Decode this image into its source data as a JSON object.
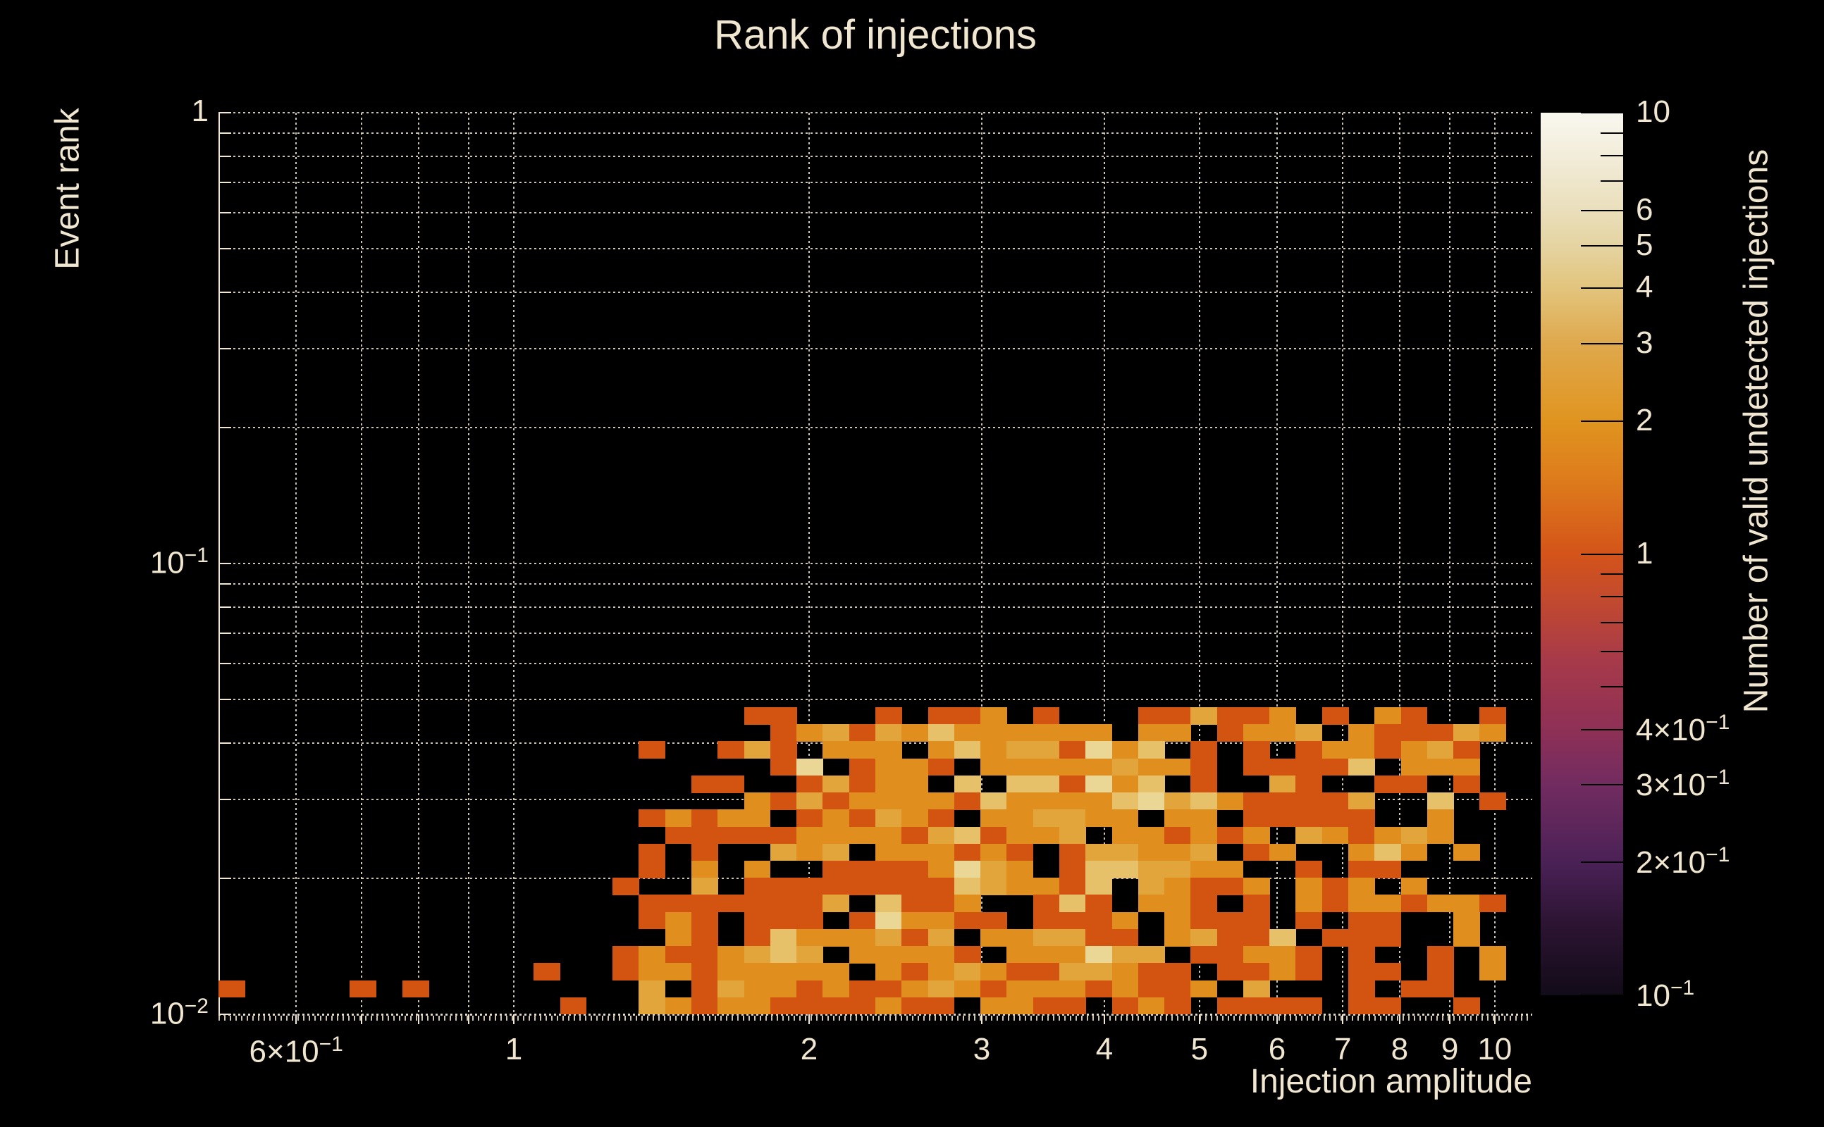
{
  "title": "Rank of injections",
  "colors": {
    "background": "#000000",
    "text": "#f1e7d1",
    "grid": "rgba(241,231,209,0.85)",
    "axis": "#f1e7d1"
  },
  "x_axis": {
    "label": "Injection amplitude",
    "scale": "log",
    "min": 0.5,
    "max": 10.92,
    "major_ticks": [
      {
        "v": 0.6,
        "base": "6×10",
        "sup": "−1"
      },
      {
        "v": 1,
        "base": "1"
      },
      {
        "v": 2,
        "base": "2"
      },
      {
        "v": 3,
        "base": "3"
      },
      {
        "v": 4,
        "base": "4"
      },
      {
        "v": 5,
        "base": "5"
      },
      {
        "v": 6,
        "base": "6"
      },
      {
        "v": 7,
        "base": "7"
      },
      {
        "v": 8,
        "base": "8"
      },
      {
        "v": 9,
        "base": "9"
      },
      {
        "v": 10,
        "base": "10"
      }
    ],
    "minor_gridlines": [
      0.7,
      0.8,
      0.9
    ]
  },
  "y_axis": {
    "label": "Event rank",
    "scale": "log",
    "min": 0.01,
    "max": 1,
    "major_ticks": [
      {
        "v": 1,
        "base": "1"
      },
      {
        "v": 0.1,
        "base": "10",
        "sup": "−1"
      },
      {
        "v": 0.01,
        "base": "10",
        "sup": "−2"
      }
    ],
    "minor_gridlines": [
      0.9,
      0.8,
      0.7,
      0.6,
      0.5,
      0.4,
      0.3,
      0.2,
      0.09,
      0.08,
      0.07,
      0.06,
      0.05,
      0.04,
      0.03,
      0.02
    ]
  },
  "colorbar": {
    "label": "Number of valid undetected injections",
    "scale": "log",
    "min": 0.1,
    "max": 10,
    "ticks": [
      {
        "v": 10,
        "base": "10"
      },
      {
        "v": 6,
        "base": "6"
      },
      {
        "v": 5,
        "base": "5"
      },
      {
        "v": 4,
        "base": "4"
      },
      {
        "v": 3,
        "base": "3"
      },
      {
        "v": 2,
        "base": "2"
      },
      {
        "v": 1,
        "base": "1"
      },
      {
        "v": 0.4,
        "base": "4×10",
        "sup": "−1"
      },
      {
        "v": 0.3,
        "base": "3×10",
        "sup": "−1"
      },
      {
        "v": 0.2,
        "base": "2×10",
        "sup": "−1"
      },
      {
        "v": 0.1,
        "base": "10",
        "sup": "−1"
      }
    ],
    "minor_tick_values": [
      9,
      8,
      7,
      6,
      5,
      4,
      3,
      2,
      0.9,
      0.8,
      0.7,
      0.6,
      0.5,
      0.4,
      0.3,
      0.2
    ],
    "gradient": [
      [
        0.0,
        "#120b18"
      ],
      [
        0.08,
        "#2c1432"
      ],
      [
        0.15,
        "#4a2156"
      ],
      [
        0.24,
        "#722c60"
      ],
      [
        0.3,
        "#8e3056"
      ],
      [
        0.38,
        "#a73a4a"
      ],
      [
        0.45,
        "#c34a2e"
      ],
      [
        0.5,
        "#d4541a"
      ],
      [
        0.58,
        "#dd7a1c"
      ],
      [
        0.65,
        "#e0941f"
      ],
      [
        0.74,
        "#dfa94e"
      ],
      [
        0.8,
        "#e2c47c"
      ],
      [
        0.85,
        "#e5d4a2"
      ],
      [
        0.89,
        "#eadfbc"
      ],
      [
        0.95,
        "#f2ecd9"
      ],
      [
        1.0,
        "#f9f8f0"
      ]
    ]
  },
  "chart_data": {
    "type": "heatmap",
    "title": "Rank of injections",
    "xlabel": "Injection amplitude",
    "ylabel": "Event rank",
    "zlabel": "Number of valid undetected injections",
    "x_scale": "log",
    "y_scale": "log",
    "z_scale": "log",
    "xlim": [
      0.5,
      10.92
    ],
    "ylim": [
      0.01,
      1
    ],
    "zlim": [
      0.1,
      10
    ],
    "n_cols": 50,
    "n_rows": 18,
    "x_bins_log_range": [
      0.5,
      10.92
    ],
    "y_bins_log_range": [
      0.01,
      0.048
    ],
    "grid_encoding": "rows top(rank≈0.048)→bottom(rank=0.01); each char = count of valid undetected injections in bin (0 = empty/black)",
    "level_colors": {
      "1": "#d35410",
      "2": "#e08f1f",
      "3": "#e2a53c",
      "4": "#e6c169",
      "5": "#ebd795",
      "6": "#f0e4bb"
    },
    "grid": [
      "00000000000000000000110001011201000113112010210010",
      "00000000000000000000012313242222220220122302111320",
      "00000000000000001001310222024233152401010122123100",
      "00000000000000000000015012210222223221011114022200",
      "00000000000000000011001312204044152401003100110100",
      "00000000000000000000213122221422224534211113004010",
      "00000000000000001212201213210223322022011111002000",
      "00000000000000000111112222134122302212120321232000",
      "00000000000000001010032302221210133223012002420200",
      "00000000000000001020200111125320144332200101100000",
      "00000000000000010030111111114322140321120212020000",
      "00000000000000001111111304112001410221010212212210",
      "00000000000000001210111015221101112021110101100200",
      "00000000000000000210142223130223311023114011100200",
      "00000000000000012112343022221022253301122101001020",
      "00000000000010012212222202123211332110112101101020",
      "10000101000000003013221211232122212112030001011000",
      "00000000000001003212211112110221101210111101100100"
    ]
  }
}
